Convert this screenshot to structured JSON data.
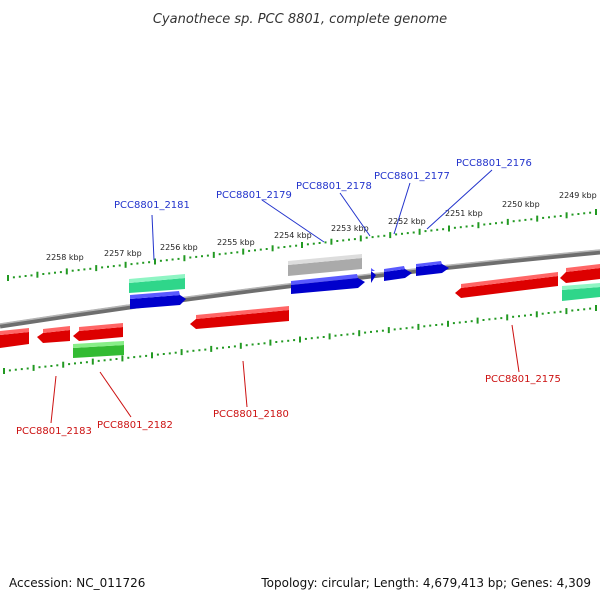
{
  "title": "Cyanothece sp. PCC 8801, complete genome",
  "footer": {
    "accession": "Accession: NC_011726",
    "stats": "Topology: circular; Length: 4,679,413 bp; Genes: 4,309"
  },
  "colors": {
    "forward_strand": "#0000dd",
    "reverse_strand": "#dd0000",
    "rna": "#33ee99",
    "rna_reverse": "#33bb33",
    "pseudo": "#bbbbbb",
    "backbone": "#8a8a8a",
    "ticks": "#229922",
    "forward_label": "#2233cc",
    "reverse_label": "#cc1111"
  },
  "kbp_labels": [
    "2258 kbp",
    "2257 kbp",
    "2256 kbp",
    "2255 kbp",
    "2254 kbp",
    "2253 kbp",
    "2252 kbp",
    "2251 kbp",
    "2250 kbp",
    "2249 kbp"
  ],
  "gene_labels": {
    "top": [
      "PCC8801_2181",
      "PCC8801_2179",
      "PCC8801_2178",
      "PCC8801_2177",
      "PCC8801_2176"
    ],
    "bottom": [
      "PCC8801_2183",
      "PCC8801_2182",
      "PCC8801_2180",
      "PCC8801_2175"
    ]
  }
}
